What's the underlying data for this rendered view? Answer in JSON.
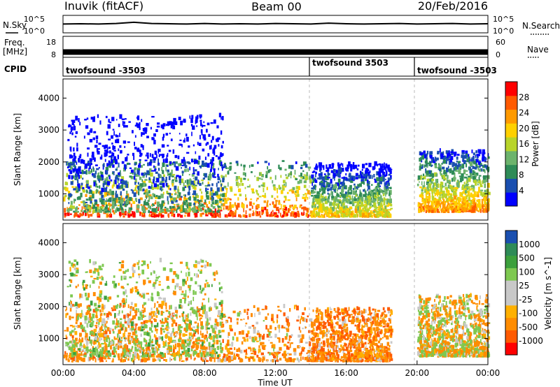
{
  "header": {
    "station": "Inuvik (fitACF)",
    "beam": "Beam 00",
    "date": "20/Feb/2016"
  },
  "side_labels": {
    "nsky": "N.Sky",
    "freq_line1": "Freq.",
    "freq_line2": "[MHz]",
    "cpid": "CPID",
    "nsearch": "N.Search",
    "nave": "Nave"
  },
  "colors": {
    "power": [
      "#0000ff",
      "#1a4fb0",
      "#2e8b57",
      "#6cb36c",
      "#b8d42a",
      "#ffd000",
      "#ff9a00",
      "#ff5a00",
      "#ff0000"
    ],
    "velocity": [
      "#ff0000",
      "#ff5a00",
      "#ff8c00",
      "#ffb000",
      "#c8c8c8",
      "#c8c8c8",
      "#7ec850",
      "#3ca03c",
      "#2e8b57",
      "#1a4fb0"
    ]
  },
  "chart_data": [
    {
      "type": "line",
      "panel": "N.Sky / N.Search",
      "ytick_labels_left": [
        "10^5",
        "10^0"
      ],
      "ytick_labels_right": [
        "10^5",
        "10^0"
      ],
      "series": [
        {
          "name": "N.Sky",
          "style": "solid",
          "values": [
            3.0,
            3.1,
            3.0,
            3.2,
            3.6,
            3.2,
            3.1,
            3.0,
            3.2,
            3.0,
            3.1,
            3.0,
            3.2,
            3.1,
            3.0,
            3.3,
            3.1,
            3.0,
            3.1,
            3.2,
            3.0,
            3.1,
            3.2,
            3.0,
            3.1
          ]
        }
      ],
      "x": [
        0,
        1,
        2,
        3,
        4,
        5,
        6,
        7,
        8,
        9,
        10,
        11,
        12,
        13,
        14,
        15,
        16,
        17,
        18,
        19,
        20,
        21,
        22,
        23,
        24
      ]
    },
    {
      "type": "line",
      "panel": "Freq. / Nave",
      "ytick_labels_left": [
        "18",
        "8"
      ],
      "ytick_labels_right": [
        "60",
        "0"
      ],
      "series": [
        {
          "name": "Freq.",
          "style": "solid",
          "values": [
            10.5,
            10.5,
            10.5,
            10.5,
            10.5,
            10.5,
            10.5,
            10.5,
            10.5,
            10.5,
            10.5,
            10.5,
            10.5,
            10.5,
            10.5,
            10.5,
            10.5,
            10.5,
            10.5,
            10.5,
            10.5,
            10.5,
            10.5,
            10.5,
            10.5
          ]
        },
        {
          "name": "Nave",
          "style": "dotted",
          "values": [
            22,
            22,
            22,
            22,
            22,
            22,
            22,
            22,
            22,
            22,
            22,
            22,
            22,
            22,
            22,
            22,
            22,
            22,
            22,
            22,
            22,
            22,
            22,
            22,
            22
          ]
        }
      ],
      "x": [
        0,
        1,
        2,
        3,
        4,
        5,
        6,
        7,
        8,
        9,
        10,
        11,
        12,
        13,
        14,
        15,
        16,
        17,
        18,
        19,
        20,
        21,
        22,
        23,
        24
      ]
    },
    {
      "type": "table",
      "panel": "CPID",
      "segments": [
        {
          "label": "twofsound -3503",
          "start": "00:00",
          "end": "14:00"
        },
        {
          "label": "twofsound 3503",
          "start": "14:00",
          "end": "20:00"
        },
        {
          "label": "twofsound -3503",
          "start": "20:00",
          "end": "00:00"
        }
      ]
    },
    {
      "type": "heatmap",
      "panel": "Power",
      "ylabel": "Slant Range [km]",
      "colorbar_label": "Power [dB]",
      "colorbar_ticks": [
        "4",
        "8",
        "12",
        "16",
        "20",
        "24",
        "28"
      ],
      "ylim": [
        180,
        4600
      ],
      "yticks": [
        "1000",
        "2000",
        "3000",
        "4000"
      ],
      "xlim": [
        "00:00",
        "00:00"
      ],
      "echo_regions": [
        {
          "t0": 0.0,
          "t1": 14.0,
          "r0": 250,
          "r1": 2000,
          "level": 28
        },
        {
          "t0": 0.2,
          "t1": 9.0,
          "r0": 400,
          "r1": 3400,
          "level": 12
        },
        {
          "t0": 14.0,
          "t1": 18.5,
          "r0": 250,
          "r1": 1900,
          "level": 20
        },
        {
          "t0": 20.0,
          "t1": 24.0,
          "r0": 400,
          "r1": 2300,
          "level": 24
        }
      ]
    },
    {
      "type": "heatmap",
      "panel": "Velocity",
      "ylabel": "Slant Range [km]",
      "xlabel": "Time UT",
      "colorbar_label": "Velocity [m s^-1]",
      "colorbar_ticks": [
        "1000",
        "500",
        "100",
        "25",
        "-25",
        "-100",
        "-500",
        "-1000"
      ],
      "ylim": [
        180,
        4600
      ],
      "yticks": [
        "1000",
        "2000",
        "3000",
        "4000"
      ],
      "xticks": [
        "00:00",
        "04:00",
        "08:00",
        "12:00",
        "16:00",
        "20:00",
        "00:00"
      ],
      "echo_regions": [
        {
          "t0": 0.0,
          "t1": 14.0,
          "r0": 250,
          "r1": 2000,
          "level": -300
        },
        {
          "t0": 0.2,
          "t1": 9.0,
          "r0": 400,
          "r1": 3400,
          "level": 150
        },
        {
          "t0": 14.0,
          "t1": 18.5,
          "r0": 250,
          "r1": 1900,
          "level": -400
        },
        {
          "t0": 20.0,
          "t1": 24.0,
          "r0": 400,
          "r1": 2300,
          "level": 0
        }
      ]
    }
  ]
}
